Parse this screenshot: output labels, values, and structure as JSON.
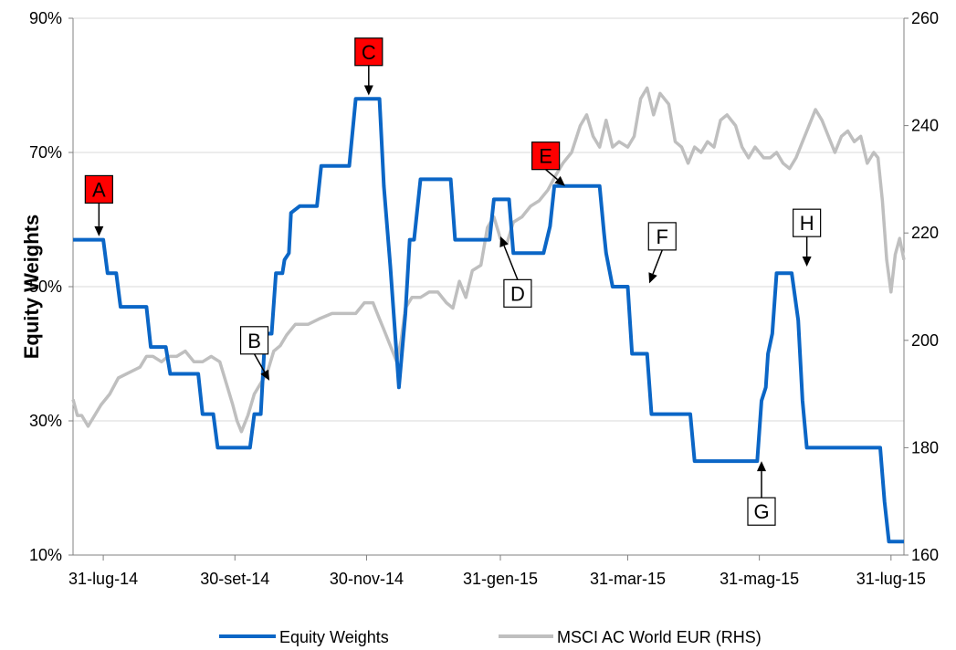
{
  "chart_data": {
    "type": "line",
    "ylabel": "Equity Weights",
    "y_left": {
      "ticks": [
        "10%",
        "30%",
        "50%",
        "70%",
        "90%"
      ],
      "range": [
        10,
        90
      ]
    },
    "y_right": {
      "ticks": [
        "160",
        "180",
        "200",
        "220",
        "240",
        "260"
      ],
      "range": [
        160,
        260
      ]
    },
    "x_ticks": [
      "31-lug-14",
      "30-set-14",
      "30-nov-14",
      "31-gen-15",
      "31-mar-15",
      "31-mag-15",
      "31-lug-15"
    ],
    "x_range": [
      "2014-07-31",
      "2015-07-31"
    ],
    "legend": {
      "position": "bottom",
      "entries": [
        "Equity Weights",
        "MSCI AC World EUR (RHS)"
      ]
    },
    "grid": true,
    "colors": {
      "equity": "#0b66c6",
      "msci": "#bfbfbf",
      "grid": "#d9d9d9",
      "marker_red": "#ff0000"
    },
    "series": [
      {
        "name": "Equity Weights",
        "axis": "left",
        "points": [
          [
            "2014-07-17",
            57
          ],
          [
            "2014-07-31",
            57
          ],
          [
            "2014-08-02",
            52
          ],
          [
            "2014-08-06",
            52
          ],
          [
            "2014-08-08",
            47
          ],
          [
            "2014-08-20",
            47
          ],
          [
            "2014-08-22",
            41
          ],
          [
            "2014-08-29",
            41
          ],
          [
            "2014-08-31",
            37
          ],
          [
            "2014-09-13",
            37
          ],
          [
            "2014-09-15",
            31
          ],
          [
            "2014-09-20",
            31
          ],
          [
            "2014-09-22",
            26
          ],
          [
            "2014-10-07",
            26
          ],
          [
            "2014-10-09",
            31
          ],
          [
            "2014-10-12",
            31
          ],
          [
            "2014-10-14",
            43
          ],
          [
            "2014-10-17",
            43
          ],
          [
            "2014-10-19",
            52
          ],
          [
            "2014-10-22",
            52
          ],
          [
            "2014-10-23",
            54
          ],
          [
            "2014-10-25",
            55
          ],
          [
            "2014-10-26",
            61
          ],
          [
            "2014-10-30",
            62
          ],
          [
            "2014-11-07",
            62
          ],
          [
            "2014-11-09",
            68
          ],
          [
            "2014-11-22",
            68
          ],
          [
            "2014-11-25",
            78
          ],
          [
            "2014-12-06",
            78
          ],
          [
            "2014-12-08",
            65
          ],
          [
            "2014-12-11",
            53
          ],
          [
            "2014-12-15",
            35
          ],
          [
            "2014-12-18",
            46
          ],
          [
            "2014-12-20",
            57
          ],
          [
            "2014-12-22",
            57
          ],
          [
            "2014-12-25",
            66
          ],
          [
            "2015-01-08",
            66
          ],
          [
            "2015-01-10",
            57
          ],
          [
            "2015-01-26",
            57
          ],
          [
            "2015-01-28",
            63
          ],
          [
            "2015-02-04",
            63
          ],
          [
            "2015-02-06",
            55
          ],
          [
            "2015-02-20",
            55
          ],
          [
            "2015-02-23",
            59
          ],
          [
            "2015-02-25",
            65
          ],
          [
            "2015-03-18",
            65
          ],
          [
            "2015-03-20",
            58
          ],
          [
            "2015-03-21",
            55
          ],
          [
            "2015-03-24",
            50
          ],
          [
            "2015-03-31",
            50
          ],
          [
            "2015-04-02",
            40
          ],
          [
            "2015-04-09",
            40
          ],
          [
            "2015-04-11",
            31
          ],
          [
            "2015-04-29",
            31
          ],
          [
            "2015-05-01",
            24
          ],
          [
            "2015-05-30",
            24
          ],
          [
            "2015-06-01",
            33
          ],
          [
            "2015-06-03",
            35
          ],
          [
            "2015-06-04",
            40
          ],
          [
            "2015-06-06",
            43
          ],
          [
            "2015-06-08",
            52
          ],
          [
            "2015-06-15",
            52
          ],
          [
            "2015-06-18",
            45
          ],
          [
            "2015-06-20",
            33
          ],
          [
            "2015-06-22",
            26
          ],
          [
            "2015-07-26",
            26
          ],
          [
            "2015-07-28",
            18
          ],
          [
            "2015-07-30",
            12
          ],
          [
            "2015-08-06",
            12
          ]
        ]
      },
      {
        "name": "MSCI AC World EUR (RHS)",
        "axis": "right",
        "points": [
          [
            "2014-07-17",
            189
          ],
          [
            "2014-07-19",
            186
          ],
          [
            "2014-07-21",
            186
          ],
          [
            "2014-07-24",
            184
          ],
          [
            "2014-07-27",
            186
          ],
          [
            "2014-07-30",
            188
          ],
          [
            "2014-08-03",
            190
          ],
          [
            "2014-08-07",
            193
          ],
          [
            "2014-08-12",
            194
          ],
          [
            "2014-08-17",
            195
          ],
          [
            "2014-08-20",
            197
          ],
          [
            "2014-08-23",
            197
          ],
          [
            "2014-08-27",
            196
          ],
          [
            "2014-08-30",
            197
          ],
          [
            "2014-09-03",
            197
          ],
          [
            "2014-09-07",
            198
          ],
          [
            "2014-09-11",
            196
          ],
          [
            "2014-09-15",
            196
          ],
          [
            "2014-09-19",
            197
          ],
          [
            "2014-09-23",
            196
          ],
          [
            "2014-09-26",
            192
          ],
          [
            "2014-09-29",
            188
          ],
          [
            "2014-10-01",
            185
          ],
          [
            "2014-10-03",
            183
          ],
          [
            "2014-10-06",
            186
          ],
          [
            "2014-10-09",
            190
          ],
          [
            "2014-10-12",
            192
          ],
          [
            "2014-10-15",
            194
          ],
          [
            "2014-10-18",
            198
          ],
          [
            "2014-10-21",
            199
          ],
          [
            "2014-10-24",
            201
          ],
          [
            "2014-10-28",
            203
          ],
          [
            "2014-11-03",
            203
          ],
          [
            "2014-11-08",
            204
          ],
          [
            "2014-11-14",
            205
          ],
          [
            "2014-11-20",
            205
          ],
          [
            "2014-11-25",
            205
          ],
          [
            "2014-11-29",
            207
          ],
          [
            "2014-12-03",
            207
          ],
          [
            "2014-12-06",
            204
          ],
          [
            "2014-12-08",
            202
          ],
          [
            "2014-12-11",
            199
          ],
          [
            "2014-12-14",
            196
          ],
          [
            "2014-12-16",
            200
          ],
          [
            "2014-12-18",
            206
          ],
          [
            "2014-12-21",
            208
          ],
          [
            "2014-12-25",
            208
          ],
          [
            "2014-12-29",
            209
          ],
          [
            "2015-01-02",
            209
          ],
          [
            "2015-01-06",
            207
          ],
          [
            "2015-01-09",
            206
          ],
          [
            "2015-01-12",
            211
          ],
          [
            "2015-01-15",
            208
          ],
          [
            "2015-01-18",
            213
          ],
          [
            "2015-01-22",
            214
          ],
          [
            "2015-01-25",
            221
          ],
          [
            "2015-01-28",
            223
          ],
          [
            "2015-01-31",
            219
          ],
          [
            "2015-02-03",
            218
          ],
          [
            "2015-02-06",
            222
          ],
          [
            "2015-02-10",
            223
          ],
          [
            "2015-02-14",
            225
          ],
          [
            "2015-02-18",
            226
          ],
          [
            "2015-02-22",
            228
          ],
          [
            "2015-02-26",
            231
          ],
          [
            "2015-03-01",
            233
          ],
          [
            "2015-03-05",
            235
          ],
          [
            "2015-03-09",
            240
          ],
          [
            "2015-03-12",
            242
          ],
          [
            "2015-03-15",
            238
          ],
          [
            "2015-03-18",
            236
          ],
          [
            "2015-03-21",
            241
          ],
          [
            "2015-03-24",
            236
          ],
          [
            "2015-03-27",
            237
          ],
          [
            "2015-03-31",
            236
          ],
          [
            "2015-04-03",
            238
          ],
          [
            "2015-04-06",
            245
          ],
          [
            "2015-04-09",
            247
          ],
          [
            "2015-04-12",
            242
          ],
          [
            "2015-04-15",
            246
          ],
          [
            "2015-04-19",
            244
          ],
          [
            "2015-04-22",
            237
          ],
          [
            "2015-04-25",
            236
          ],
          [
            "2015-04-28",
            233
          ],
          [
            "2015-05-01",
            236
          ],
          [
            "2015-05-04",
            235
          ],
          [
            "2015-05-07",
            237
          ],
          [
            "2015-05-10",
            236
          ],
          [
            "2015-05-13",
            241
          ],
          [
            "2015-05-16",
            242
          ],
          [
            "2015-05-20",
            240
          ],
          [
            "2015-05-23",
            236
          ],
          [
            "2015-05-26",
            234
          ],
          [
            "2015-05-29",
            236
          ],
          [
            "2015-06-02",
            234
          ],
          [
            "2015-06-05",
            234
          ],
          [
            "2015-06-08",
            235
          ],
          [
            "2015-06-11",
            233
          ],
          [
            "2015-06-14",
            232
          ],
          [
            "2015-06-17",
            234
          ],
          [
            "2015-06-20",
            237
          ],
          [
            "2015-06-23",
            240
          ],
          [
            "2015-06-26",
            243
          ],
          [
            "2015-06-29",
            241
          ],
          [
            "2015-07-02",
            238
          ],
          [
            "2015-07-05",
            235
          ],
          [
            "2015-07-08",
            238
          ],
          [
            "2015-07-11",
            239
          ],
          [
            "2015-07-14",
            237
          ],
          [
            "2015-07-17",
            238
          ],
          [
            "2015-07-20",
            233
          ],
          [
            "2015-07-23",
            235
          ],
          [
            "2015-07-25",
            234
          ],
          [
            "2015-07-27",
            226
          ],
          [
            "2015-07-29",
            215
          ],
          [
            "2015-07-31",
            209
          ],
          [
            "2015-08-02",
            216
          ],
          [
            "2015-08-04",
            219
          ],
          [
            "2015-08-06",
            215
          ]
        ]
      }
    ],
    "annotations": [
      {
        "label": "A",
        "style": "red",
        "box_x": "2014-07-29",
        "box_y": 64.5,
        "arrow_to_x": "2014-07-29",
        "arrow_to_y": 57.5
      },
      {
        "label": "B",
        "style": "white",
        "box_x": "2014-10-09",
        "box_y": 42,
        "arrow_to_x": "2014-10-16",
        "arrow_to_y": 36
      },
      {
        "label": "C",
        "style": "red",
        "box_x": "2014-12-01",
        "box_y": 85,
        "arrow_to_x": "2014-12-01",
        "arrow_to_y": 78.5
      },
      {
        "label": "D",
        "style": "white",
        "box_x": "2015-02-08",
        "box_y": 49,
        "arrow_to_x": "2015-01-31",
        "arrow_to_y": 57.5
      },
      {
        "label": "E",
        "style": "red",
        "box_x": "2015-02-21",
        "box_y": 69.5,
        "arrow_to_x": "2015-03-02",
        "arrow_to_y": 65
      },
      {
        "label": "F",
        "style": "white",
        "box_x": "2015-04-16",
        "box_y": 57.5,
        "arrow_to_x": "2015-04-10",
        "arrow_to_y": 50.5
      },
      {
        "label": "G",
        "style": "white",
        "box_x": "2015-06-01",
        "box_y": 16.5,
        "arrow_to_x": "2015-06-01",
        "arrow_to_y": 24
      },
      {
        "label": "H",
        "style": "white",
        "box_x": "2015-06-22",
        "box_y": 59.5,
        "arrow_to_x": "2015-06-22",
        "arrow_to_y": 53
      }
    ]
  }
}
